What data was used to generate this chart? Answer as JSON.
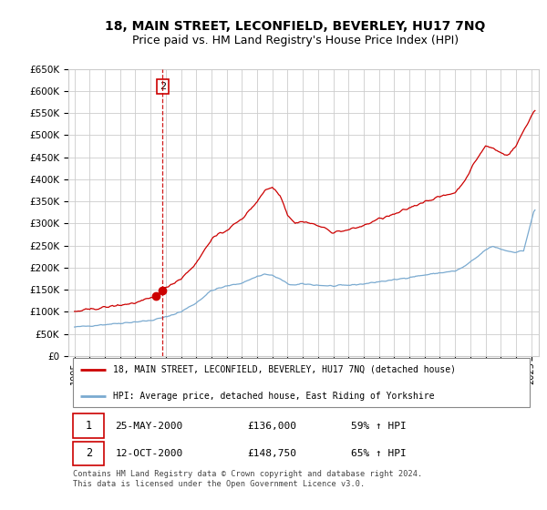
{
  "title": "18, MAIN STREET, LECONFIELD, BEVERLEY, HU17 7NQ",
  "subtitle": "Price paid vs. HM Land Registry's House Price Index (HPI)",
  "ylim": [
    0,
    650000
  ],
  "yticks": [
    0,
    50000,
    100000,
    150000,
    200000,
    250000,
    300000,
    350000,
    400000,
    450000,
    500000,
    550000,
    600000,
    650000
  ],
  "ytick_labels": [
    "£0",
    "£50K",
    "£100K",
    "£150K",
    "£200K",
    "£250K",
    "£300K",
    "£350K",
    "£400K",
    "£450K",
    "£500K",
    "£550K",
    "£600K",
    "£650K"
  ],
  "xlim_start": 1995.0,
  "xlim_end": 2025.5,
  "background_color": "#ffffff",
  "grid_color": "#cccccc",
  "red_line_color": "#cc0000",
  "blue_line_color": "#7aaad0",
  "price_sale1": 136000,
  "price_sale2": 148750,
  "t1_year": 2000.37,
  "t2_year": 2000.79,
  "transaction1": {
    "date": "25-MAY-2000",
    "price": 136000,
    "label": "1",
    "hpi_pct": "59% ↑ HPI"
  },
  "transaction2": {
    "date": "12-OCT-2000",
    "price": 148750,
    "label": "2",
    "hpi_pct": "65% ↑ HPI"
  },
  "legend_label_red": "18, MAIN STREET, LECONFIELD, BEVERLEY, HU17 7NQ (detached house)",
  "legend_label_blue": "HPI: Average price, detached house, East Riding of Yorkshire",
  "footnote": "Contains HM Land Registry data © Crown copyright and database right 2024.\nThis data is licensed under the Open Government Licence v3.0.",
  "title_fontsize": 10,
  "subtitle_fontsize": 9
}
